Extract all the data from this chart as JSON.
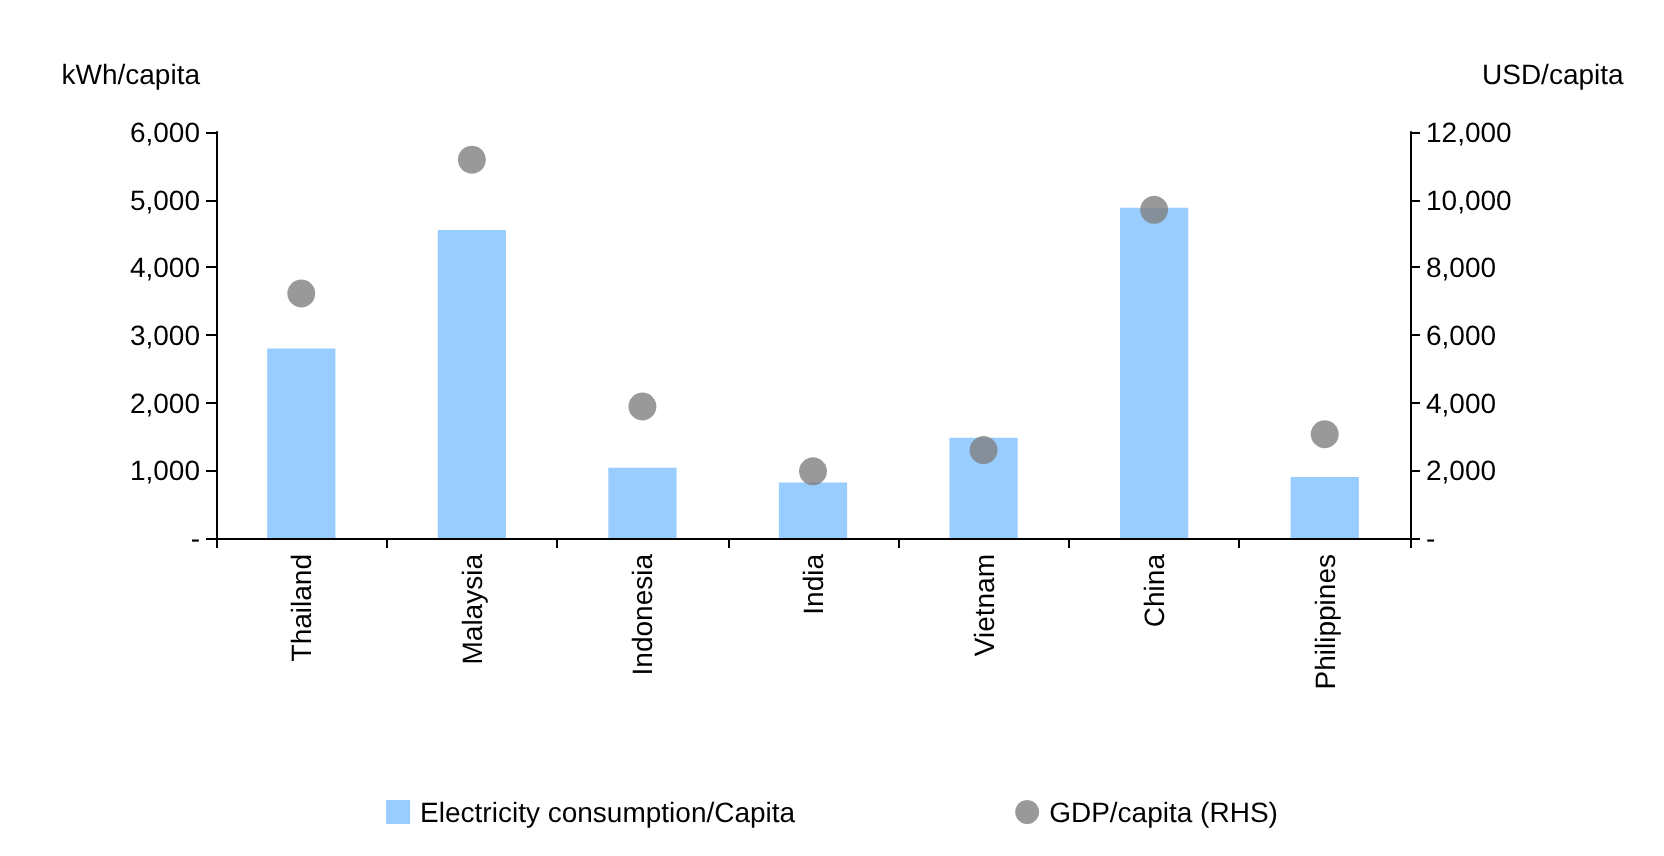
{
  "chart_data": {
    "type": "bar",
    "ylabel": "kWh/capita",
    "y2label": "USD/capita",
    "categories": [
      "Thailand",
      "Malaysia",
      "Indonesia",
      "India",
      "Vietnam",
      "China",
      "Philippines"
    ],
    "series": [
      {
        "name": "Electricity consumption/Capita",
        "color": "#99ccff",
        "values": [
          2800,
          4550,
          1040,
          820,
          1480,
          4880,
          900
        ]
      },
      {
        "name": "GDP/capita (RHS)",
        "type": "scatter",
        "axis": "y2",
        "color": "#7f7f7f",
        "marker": "circle",
        "values": [
          7230,
          11180,
          3890,
          1970,
          2600,
          9700,
          3070
        ]
      }
    ],
    "ylim": [
      0,
      6000
    ],
    "yticks": [
      {
        "value": 0,
        "label": "-"
      },
      {
        "value": 1000,
        "label": "1,000"
      },
      {
        "value": 2000,
        "label": "2,000"
      },
      {
        "value": 3000,
        "label": "3,000"
      },
      {
        "value": 4000,
        "label": "4,000"
      },
      {
        "value": 5000,
        "label": "5,000"
      },
      {
        "value": 6000,
        "label": "6,000"
      }
    ],
    "y2lim": [
      0,
      12000
    ],
    "y2ticks": [
      {
        "value": 0,
        "label": "-"
      },
      {
        "value": 2000,
        "label": "2,000"
      },
      {
        "value": 4000,
        "label": "4,000"
      },
      {
        "value": 6000,
        "label": "6,000"
      },
      {
        "value": 8000,
        "label": "8,000"
      },
      {
        "value": 10000,
        "label": "10,000"
      },
      {
        "value": 12000,
        "label": "12,000"
      }
    ],
    "grid": false,
    "legend": "bottom"
  }
}
